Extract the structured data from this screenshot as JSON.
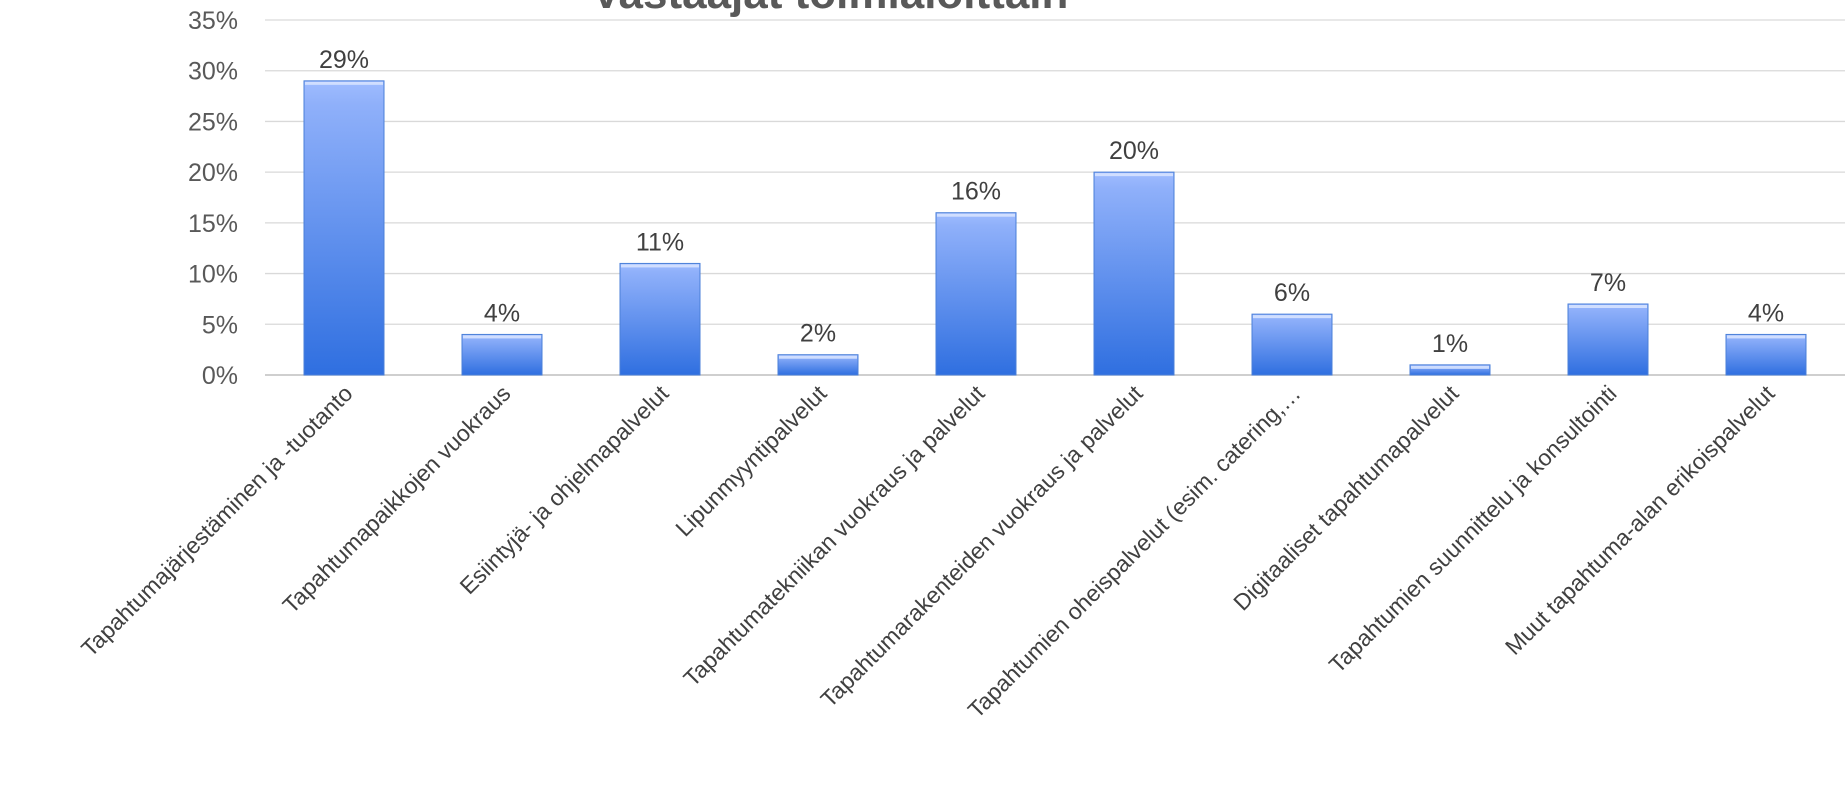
{
  "chart_data": {
    "type": "bar",
    "title": "Vastaajat toimialoittain",
    "categories": [
      "Tapahtumajärjestäminen ja -tuotanto",
      "Tapahtumapaikkojen vuokraus",
      "Esiintyjä- ja ohjelmapalvelut",
      "Lipunmyyntipalvelut",
      "Tapahtumatekniikan vuokraus ja palvelut",
      "Tapahtumarakenteiden vuokraus ja palvelut",
      "Tapahtumien oheispalvelut (esim. catering,…",
      "Digitaaliset tapahtumapalvelut",
      "Tapahtumien suunnittelu ja konsultointi",
      "Muut tapahtuma-alan erikoispalvelut"
    ],
    "values": [
      29,
      4,
      11,
      2,
      16,
      20,
      6,
      1,
      7,
      4
    ],
    "data_labels": [
      "29%",
      "4%",
      "11%",
      "2%",
      "16%",
      "20%",
      "6%",
      "1%",
      "7%",
      "4%"
    ],
    "ylim": [
      0,
      35
    ],
    "yticks": [
      0,
      5,
      10,
      15,
      20,
      25,
      30,
      35
    ],
    "ytick_labels": [
      "0%",
      "5%",
      "10%",
      "15%",
      "20%",
      "25%",
      "30%",
      "35%"
    ],
    "grid": true,
    "colors": {
      "bar_top": "#9fbcff",
      "bar_bottom": "#2f6fe0",
      "bar_edge": "#4a7fd8"
    }
  }
}
